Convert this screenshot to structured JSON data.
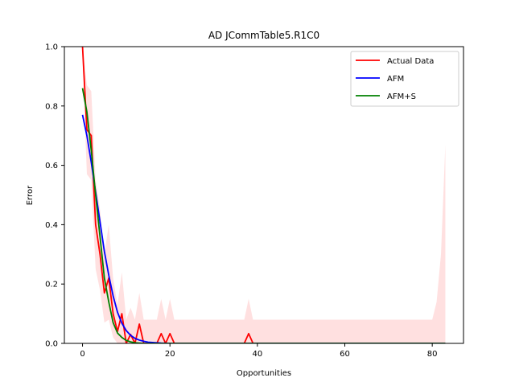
{
  "chart_data": {
    "type": "line",
    "title": "AD JCommTable5.R1C0",
    "xlabel": "Opportunities",
    "ylabel": "Error",
    "xlim": [
      -4.15,
      87.15
    ],
    "ylim": [
      0,
      1
    ],
    "xticks": [
      0,
      20,
      40,
      60,
      80
    ],
    "yticks": [
      0.0,
      0.2,
      0.4,
      0.6,
      0.8,
      1.0
    ],
    "xtick_labels": [
      "0",
      "20",
      "40",
      "60",
      "80"
    ],
    "ytick_labels": [
      "0.0",
      "0.2",
      "0.4",
      "0.6",
      "0.8",
      "1.0"
    ],
    "grid": false,
    "legend_position": "top-right",
    "series": [
      {
        "name": "Actual Data",
        "color": "#ff0000",
        "x": [
          0,
          1,
          2,
          3,
          4,
          5,
          6,
          7,
          8,
          9,
          10,
          11,
          12,
          13,
          14,
          15,
          16,
          17,
          18,
          19,
          20,
          21,
          22,
          36,
          37,
          38,
          39,
          40,
          83
        ],
        "y": [
          1.0,
          0.72,
          0.7,
          0.4,
          0.3,
          0.17,
          0.22,
          0.1,
          0.04,
          0.1,
          0.0,
          0.03,
          0.0,
          0.065,
          0.0,
          0.0,
          0.0,
          0.0,
          0.033,
          0.0,
          0.033,
          0.0,
          0.0,
          0.0,
          0.0,
          0.033,
          0.0,
          0.0,
          0.0
        ]
      },
      {
        "name": "AFM",
        "color": "#0000ff",
        "x": [
          0,
          1,
          2,
          3,
          4,
          5,
          6,
          7,
          8,
          9,
          10,
          11,
          12,
          13,
          14,
          15,
          16,
          18,
          20,
          25,
          30,
          83
        ],
        "y": [
          0.77,
          0.7,
          0.61,
          0.51,
          0.41,
          0.31,
          0.23,
          0.16,
          0.105,
          0.068,
          0.043,
          0.027,
          0.017,
          0.011,
          0.007,
          0.004,
          0.003,
          0.001,
          0.0,
          0.0,
          0.0,
          0.0
        ]
      },
      {
        "name": "AFM+S",
        "color": "#008000",
        "x": [
          0,
          1,
          2,
          3,
          4,
          5,
          6,
          7,
          8,
          9,
          10,
          11,
          12,
          13,
          14,
          16,
          20,
          83
        ],
        "y": [
          0.86,
          0.78,
          0.65,
          0.5,
          0.36,
          0.22,
          0.14,
          0.07,
          0.035,
          0.02,
          0.01,
          0.005,
          0.002,
          0.001,
          0.0,
          0.0,
          0.0,
          0.0
        ]
      }
    ],
    "confidence_band": {
      "series": "Actual Data",
      "color": "#ffcccc",
      "x": [
        0,
        1,
        2,
        3,
        4,
        5,
        6,
        7,
        8,
        9,
        10,
        11,
        12,
        13,
        14,
        15,
        16,
        17,
        18,
        19,
        20,
        21,
        22,
        36,
        37,
        38,
        39,
        40,
        79,
        80,
        81,
        82,
        83
      ],
      "upper": [
        1.0,
        0.87,
        0.85,
        0.55,
        0.45,
        0.3,
        0.4,
        0.22,
        0.13,
        0.24,
        0.08,
        0.12,
        0.08,
        0.17,
        0.08,
        0.08,
        0.08,
        0.08,
        0.15,
        0.08,
        0.15,
        0.08,
        0.08,
        0.08,
        0.08,
        0.15,
        0.08,
        0.08,
        0.08,
        0.08,
        0.14,
        0.3,
        0.67
      ],
      "lower": [
        0.95,
        0.57,
        0.55,
        0.25,
        0.18,
        0.07,
        0.08,
        0.02,
        0.0,
        0.0,
        0.0,
        0.0,
        0.0,
        0.0,
        0.0,
        0.0,
        0.0,
        0.0,
        0.0,
        0.0,
        0.0,
        0.0,
        0.0,
        0.0,
        0.0,
        0.0,
        0.0,
        0.0,
        0.0,
        0.0,
        0.0,
        0.0,
        0.0
      ]
    }
  }
}
